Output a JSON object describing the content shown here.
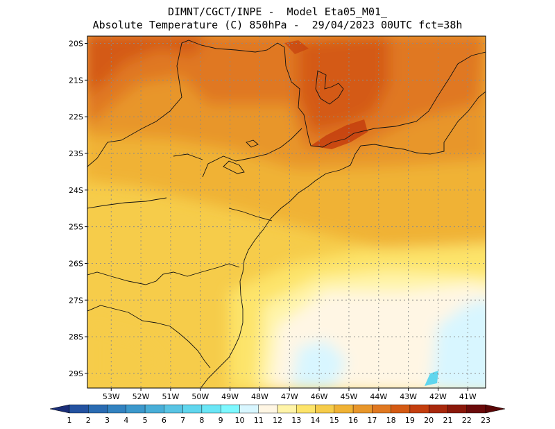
{
  "title": {
    "line1": "DIMNT/CGCT/INPE -  Model Eta05_M01_",
    "line2": "Absolute Temperature (C) 850hPa -  29/04/2023 00UTC fct=38h"
  },
  "map": {
    "lon_range": [
      -53.8,
      -40.4
    ],
    "lat_range": [
      -29.4,
      -19.8
    ],
    "lat_ticks": [
      "20S",
      "21S",
      "22S",
      "23S",
      "24S",
      "25S",
      "26S",
      "27S",
      "28S",
      "29S"
    ],
    "lon_ticks": [
      "53W",
      "52W",
      "51W",
      "50W",
      "49W",
      "48W",
      "47W",
      "46W",
      "45W",
      "44W",
      "43W",
      "42W",
      "41W"
    ],
    "gridlines": true
  },
  "colorbar": {
    "labels": [
      "1",
      "2",
      "3",
      "4",
      "5",
      "6",
      "7",
      "8",
      "9",
      "10",
      "11",
      "12",
      "13",
      "14",
      "15",
      "16",
      "17",
      "18",
      "19",
      "20",
      "21",
      "22",
      "23"
    ],
    "colors": [
      "#1e3a8c",
      "#2452a0",
      "#2a6bb2",
      "#3282c0",
      "#3c98cc",
      "#48aed8",
      "#58c4e4",
      "#60d6ee",
      "#6ae6f6",
      "#7ef8ff",
      "#d8f6ff",
      "#fff6e4",
      "#fff4a8",
      "#fde46a",
      "#f6cc4a",
      "#f0b234",
      "#e8962a",
      "#e07820",
      "#d45a14",
      "#c43e0e",
      "#a8280c",
      "#8a180a",
      "#6a0a0a"
    ],
    "arrow_left_color": "#1a2e78",
    "arrow_right_color": "#5a0606"
  }
}
